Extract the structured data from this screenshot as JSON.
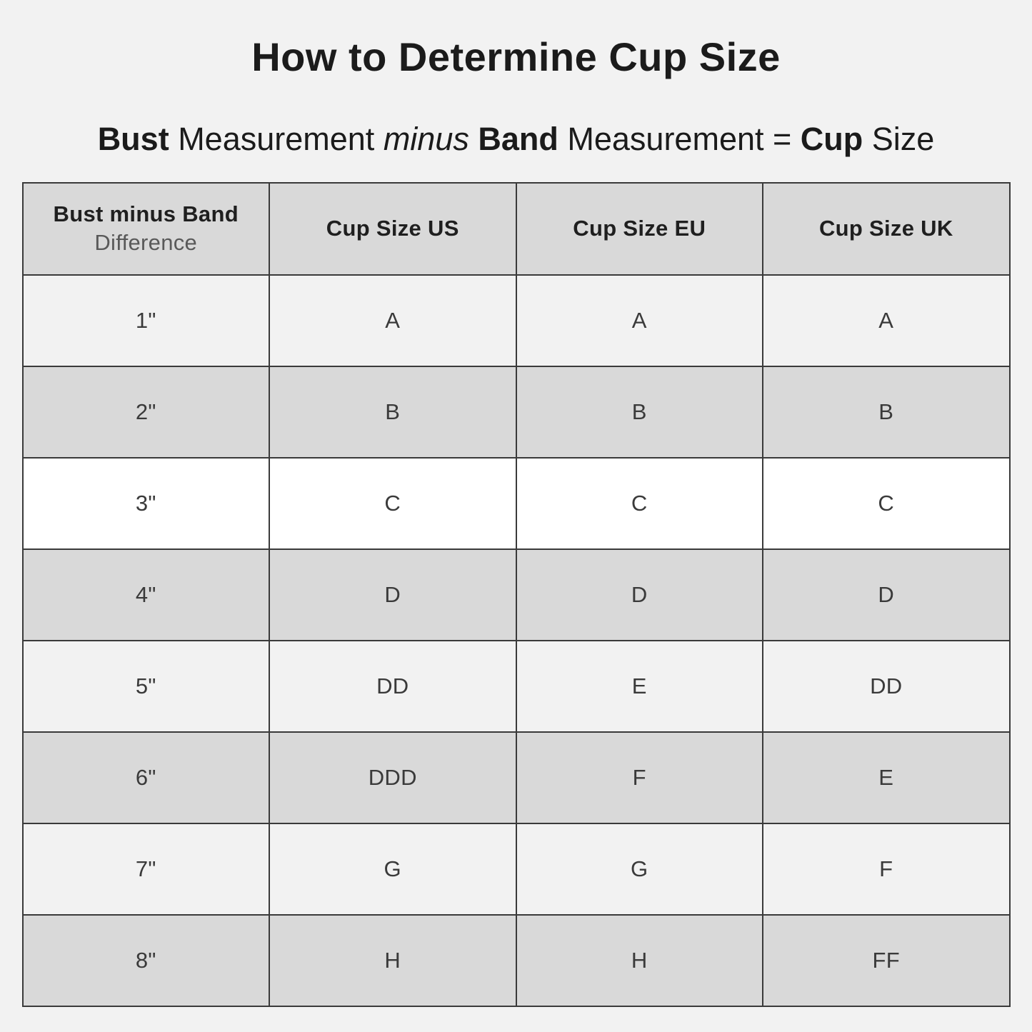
{
  "colors": {
    "page_background": "#f2f2f2",
    "header_row_background": "#d9d9d9",
    "dark_row_background": "#d9d9d9",
    "light_row_background": "#f2f2f2",
    "highlight_row_background": "#ffffff",
    "table_border": "#3a3a3a",
    "title_text": "#1b1b1b",
    "cell_text": "#3a3a3a",
    "header_sub_label_text": "#595959"
  },
  "title": "How to Determine Cup Size",
  "formula": {
    "bust": "Bust",
    "measurement1": " Measurement ",
    "minus": "minus",
    "band": " Band",
    "measurement2": " Measurement = ",
    "cup": "Cup",
    "size": " Size"
  },
  "table": {
    "headers": {
      "col1_line1": "Bust minus Band",
      "col1_line2": "Difference",
      "col2": "Cup Size US",
      "col3": "Cup Size EU",
      "col4": "Cup Size UK"
    },
    "rows": [
      {
        "diff": "1\"",
        "us": "A",
        "eu": "A",
        "uk": "A"
      },
      {
        "diff": "2\"",
        "us": "B",
        "eu": "B",
        "uk": "B"
      },
      {
        "diff": "3\"",
        "us": "C",
        "eu": "C",
        "uk": "C"
      },
      {
        "diff": "4\"",
        "us": "D",
        "eu": "D",
        "uk": "D"
      },
      {
        "diff": "5\"",
        "us": "DD",
        "eu": "E",
        "uk": "DD"
      },
      {
        "diff": "6\"",
        "us": "DDD",
        "eu": "F",
        "uk": "E"
      },
      {
        "diff": "7\"",
        "us": "G",
        "eu": "G",
        "uk": "F"
      },
      {
        "diff": "8\"",
        "us": "H",
        "eu": "H",
        "uk": "FF"
      }
    ],
    "highlighted_row_diff": "3\""
  },
  "chart_data": {
    "type": "table",
    "title": "How to Determine Cup Size",
    "subtitle": "Bust Measurement minus Band Measurement = Cup Size",
    "columns": [
      "Bust minus Band Difference",
      "Cup Size US",
      "Cup Size EU",
      "Cup Size UK"
    ],
    "rows": [
      [
        "1\"",
        "A",
        "A",
        "A"
      ],
      [
        "2\"",
        "B",
        "B",
        "B"
      ],
      [
        "3\"",
        "C",
        "C",
        "C"
      ],
      [
        "4\"",
        "D",
        "D",
        "D"
      ],
      [
        "5\"",
        "DD",
        "E",
        "DD"
      ],
      [
        "6\"",
        "DDD",
        "F",
        "E"
      ],
      [
        "7\"",
        "G",
        "G",
        "F"
      ],
      [
        "8\"",
        "H",
        "H",
        "FF"
      ]
    ],
    "layout_hints": {
      "row_background_pattern": [
        "light",
        "dark",
        "white-highlight",
        "dark",
        "light",
        "dark",
        "light",
        "dark"
      ],
      "header_background": "gray",
      "grid": true
    }
  }
}
